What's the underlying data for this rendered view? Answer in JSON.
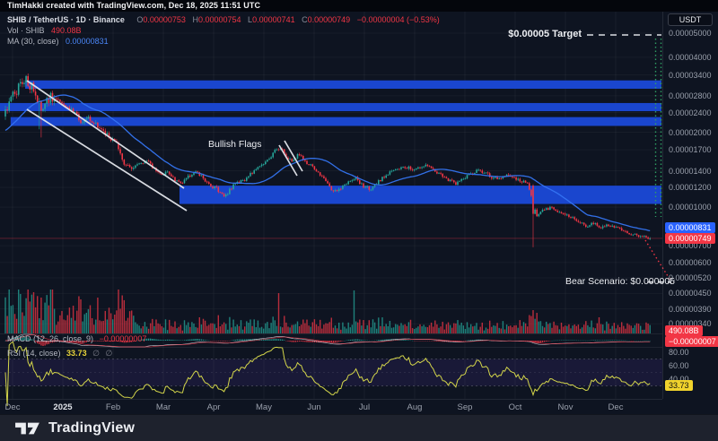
{
  "header": {
    "attribution": "TimHakki created with TradingView.com, Dec 18, 2025 11:51 UTC"
  },
  "legend": {
    "symbol": "SHIB / TetherUS · 1D · Binance",
    "o_label": "O",
    "o": "0.00000753",
    "h_label": "H",
    "h": "0.00000754",
    "l_label": "L",
    "l": "0.00000741",
    "c_label": "C",
    "c": "0.00000749",
    "change": "−0.00000004 (−0.53%)",
    "vol_label": "Vol · SHIB",
    "vol_value": "490.08B",
    "ma_label": "MA (30, close)",
    "ma_value": "0.00000831"
  },
  "price_scale": {
    "currency_button": "USDT",
    "badges": {
      "ma": "0.00000831",
      "price": "0.00000749",
      "volume": "490.08B",
      "macd": "−0.00000007",
      "rsi": "33.73"
    }
  },
  "indicators": {
    "macd_label": "MACD (12, 26, close, 9)",
    "macd_value": "−0.00000007",
    "rsi_label": "RSI (14, close)",
    "rsi_value": "33.73",
    "rsi_mute1": "∅",
    "rsi_mute2": "∅"
  },
  "annotations": {
    "target_text": "$0.00005 Target",
    "bear_text": "Bear Scenario: $0.000005",
    "flags_text": "Bullish Flags"
  },
  "footer": {
    "brand": "TradingView"
  },
  "chart_data": {
    "type": "candlestick",
    "symbol": "SHIB/TetherUS",
    "interval": "1D",
    "exchange": "Binance",
    "scale": "logarithmic",
    "last_candle": {
      "open": 7.53e-06,
      "high": 7.54e-06,
      "low": 7.41e-06,
      "close": 7.49e-06,
      "change": -4e-08,
      "change_pct": -0.53
    },
    "ma30_value": 8.31e-06,
    "volume_last": "490.08B",
    "macd_value": -7e-08,
    "rsi_value": 33.73,
    "y_ticks": [
      5e-05,
      4e-05,
      3.4e-05,
      2.8e-05,
      2.4e-05,
      2e-05,
      1.7e-05,
      1.4e-05,
      1.2e-05,
      1e-05,
      7e-06,
      6e-06,
      5.2e-06,
      4.5e-06,
      3.9e-06,
      3.4e-06
    ],
    "rsi_ticks": [
      80,
      60,
      40
    ],
    "rsi_band": [
      70,
      30
    ],
    "x_ticks": [
      "Dec",
      "2025",
      "Feb",
      "Mar",
      "Apr",
      "May",
      "Jun",
      "Jul",
      "Aug",
      "Sep",
      "Oct",
      "Nov",
      "Dec"
    ],
    "target_level": 5e-05,
    "bear_level": 5e-06,
    "resistance_zones": [
      {
        "price_from": 2.99e-05,
        "price_to": 3.23e-05,
        "x_from_frac": 0.038,
        "x_to_frac": 1.0
      },
      {
        "price_from": 2.43e-05,
        "price_to": 2.62e-05,
        "x_from_frac": 0.0,
        "x_to_frac": 1.0
      },
      {
        "price_from": 2.12e-05,
        "price_to": 2.3e-05,
        "x_from_frac": 0.016,
        "x_to_frac": 1.0
      }
    ],
    "support_zone": {
      "price_from": 1.03e-05,
      "price_to": 1.22e-05,
      "x_from_frac": 0.271,
      "x_to_frac": 1.0
    },
    "flag_channels": [
      {
        "x1": 30,
        "y1": 90,
        "x2": 205,
        "y2": 210
      },
      {
        "x1": 30,
        "y1": 122,
        "x2": 208,
        "y2": 235
      },
      {
        "x1": 311,
        "y1": 162,
        "x2": 331,
        "y2": 196
      },
      {
        "x1": 317,
        "y1": 157,
        "x2": 337,
        "y2": 191
      }
    ],
    "price_path": [
      [
        0.0,
        2.35e-05
      ],
      [
        0.011,
        2.75e-05
      ],
      [
        0.022,
        3.08e-05
      ],
      [
        0.033,
        3.25e-05
      ],
      [
        0.044,
        2.95e-05
      ],
      [
        0.056,
        2.45e-05
      ],
      [
        0.072,
        2.8e-05
      ],
      [
        0.094,
        2.52e-05
      ],
      [
        0.106,
        2.42e-05
      ],
      [
        0.117,
        2.2e-05
      ],
      [
        0.128,
        2.26e-05
      ],
      [
        0.15,
        2.05e-05
      ],
      [
        0.161,
        1.93e-05
      ],
      [
        0.172,
        1.78e-05
      ],
      [
        0.183,
        1.5e-05
      ],
      [
        0.194,
        1.42e-05
      ],
      [
        0.206,
        1.48e-05
      ],
      [
        0.217,
        1.55e-05
      ],
      [
        0.228,
        1.45e-05
      ],
      [
        0.239,
        1.35e-05
      ],
      [
        0.25,
        1.38e-05
      ],
      [
        0.261,
        1.3e-05
      ],
      [
        0.272,
        1.25e-05
      ],
      [
        0.283,
        1.32e-05
      ],
      [
        0.294,
        1.4e-05
      ],
      [
        0.306,
        1.3e-05
      ],
      [
        0.317,
        1.22e-05
      ],
      [
        0.328,
        1.18e-05
      ],
      [
        0.339,
        1.1e-05
      ],
      [
        0.35,
        1.2e-05
      ],
      [
        0.361,
        1.26e-05
      ],
      [
        0.372,
        1.3e-05
      ],
      [
        0.383,
        1.38e-05
      ],
      [
        0.394,
        1.45e-05
      ],
      [
        0.406,
        1.55e-05
      ],
      [
        0.417,
        1.68e-05
      ],
      [
        0.425,
        1.75e-05
      ],
      [
        0.433,
        1.62e-05
      ],
      [
        0.444,
        1.52e-05
      ],
      [
        0.453,
        1.65e-05
      ],
      [
        0.464,
        1.52e-05
      ],
      [
        0.475,
        1.45e-05
      ],
      [
        0.486,
        1.35e-05
      ],
      [
        0.497,
        1.27e-05
      ],
      [
        0.508,
        1.15e-05
      ],
      [
        0.519,
        1.2e-05
      ],
      [
        0.531,
        1.25e-05
      ],
      [
        0.542,
        1.3e-05
      ],
      [
        0.553,
        1.22e-05
      ],
      [
        0.564,
        1.18e-05
      ],
      [
        0.575,
        1.25e-05
      ],
      [
        0.586,
        1.32e-05
      ],
      [
        0.597,
        1.38e-05
      ],
      [
        0.608,
        1.42e-05
      ],
      [
        0.619,
        1.46e-05
      ],
      [
        0.631,
        1.4e-05
      ],
      [
        0.642,
        1.44e-05
      ],
      [
        0.653,
        1.48e-05
      ],
      [
        0.664,
        1.4e-05
      ],
      [
        0.675,
        1.34e-05
      ],
      [
        0.686,
        1.28e-05
      ],
      [
        0.697,
        1.25e-05
      ],
      [
        0.708,
        1.3e-05
      ],
      [
        0.719,
        1.35e-05
      ],
      [
        0.731,
        1.4e-05
      ],
      [
        0.742,
        1.37e-05
      ],
      [
        0.753,
        1.32e-05
      ],
      [
        0.764,
        1.3e-05
      ],
      [
        0.775,
        1.35e-05
      ],
      [
        0.786,
        1.32e-05
      ],
      [
        0.797,
        1.28e-05
      ],
      [
        0.808,
        1.24e-05
      ],
      [
        0.817,
        1.05e-05
      ],
      [
        0.822,
        9.3e-06
      ],
      [
        0.833,
        9.7e-06
      ],
      [
        0.844,
        1e-05
      ],
      [
        0.856,
        9.6e-06
      ],
      [
        0.867,
        9.3e-06
      ],
      [
        0.878,
        9e-06
      ],
      [
        0.889,
        8.7e-06
      ],
      [
        0.9,
        8.4e-06
      ],
      [
        0.911,
        8.6e-06
      ],
      [
        0.922,
        8.3e-06
      ],
      [
        0.933,
        8.5e-06
      ],
      [
        0.944,
        8.3e-06
      ],
      [
        0.956,
        8e-06
      ],
      [
        0.967,
        7.8e-06
      ],
      [
        0.978,
        7.7e-06
      ],
      [
        0.989,
        7.6e-06
      ],
      [
        1.0,
        7.49e-06
      ]
    ],
    "volume_spikes": [
      [
        0.022,
        44
      ],
      [
        0.044,
        46
      ],
      [
        0.056,
        40
      ],
      [
        0.117,
        38
      ],
      [
        0.176,
        49
      ],
      [
        0.3,
        18
      ],
      [
        0.422,
        45
      ],
      [
        0.54,
        48
      ],
      [
        0.817,
        26
      ],
      [
        0.92,
        18
      ]
    ],
    "colors": {
      "up": "#26a69a",
      "down": "#f23645",
      "zone_blue": "#1b49d8",
      "ma_line": "#3575f3",
      "rsi_line": "#d3d54a",
      "badge_yellow": "#f0d22c",
      "badge_blue": "#2962ff",
      "badge_red": "#f23645"
    }
  }
}
